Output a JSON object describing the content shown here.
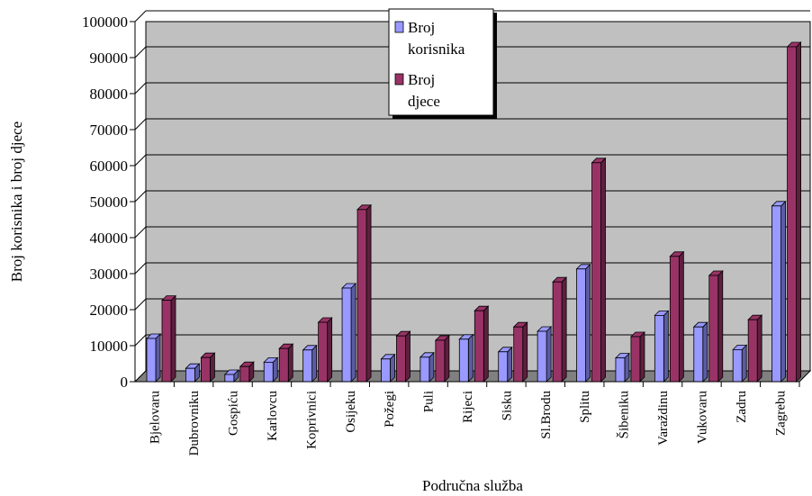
{
  "chart_data": {
    "type": "bar",
    "title": "",
    "xlabel": "Područna služba",
    "ylabel": "Broj korisnika i broj djece",
    "ylim": [
      0,
      100000
    ],
    "yticks": [
      "0",
      "10000",
      "20000",
      "30000",
      "40000",
      "50000",
      "60000",
      "70000",
      "80000",
      "90000",
      "100000"
    ],
    "categories": [
      "Bjelovaru",
      "Dubrovniku",
      "Gospiću",
      "Karlovcu",
      "Koprivnici",
      "Osijeku",
      "Požegi",
      "Puli",
      "Rijeci",
      "Sisku",
      "Sl.Brodu",
      "Splitu",
      "Šibeniku",
      "Varaždinu",
      "Vukovaru",
      "Zadru",
      "Zagrebu"
    ],
    "series": [
      {
        "name_lines": [
          "Broj",
          "korisnika"
        ],
        "color": "#9999ff",
        "side_color": "#5c5ca3",
        "values": [
          12000,
          3700,
          2000,
          5400,
          8800,
          26000,
          6300,
          6800,
          11800,
          8300,
          14000,
          31300,
          6600,
          18400,
          15200,
          8900,
          48800
        ]
      },
      {
        "name_lines": [
          "Broj",
          "djece"
        ],
        "color": "#993366",
        "side_color": "#5e1f3f",
        "values": [
          22600,
          6700,
          4200,
          9200,
          16500,
          47800,
          12700,
          11500,
          19700,
          15200,
          27700,
          60800,
          12500,
          34800,
          29500,
          17200,
          93000
        ]
      }
    ],
    "grid": true,
    "legend": "top-center"
  }
}
